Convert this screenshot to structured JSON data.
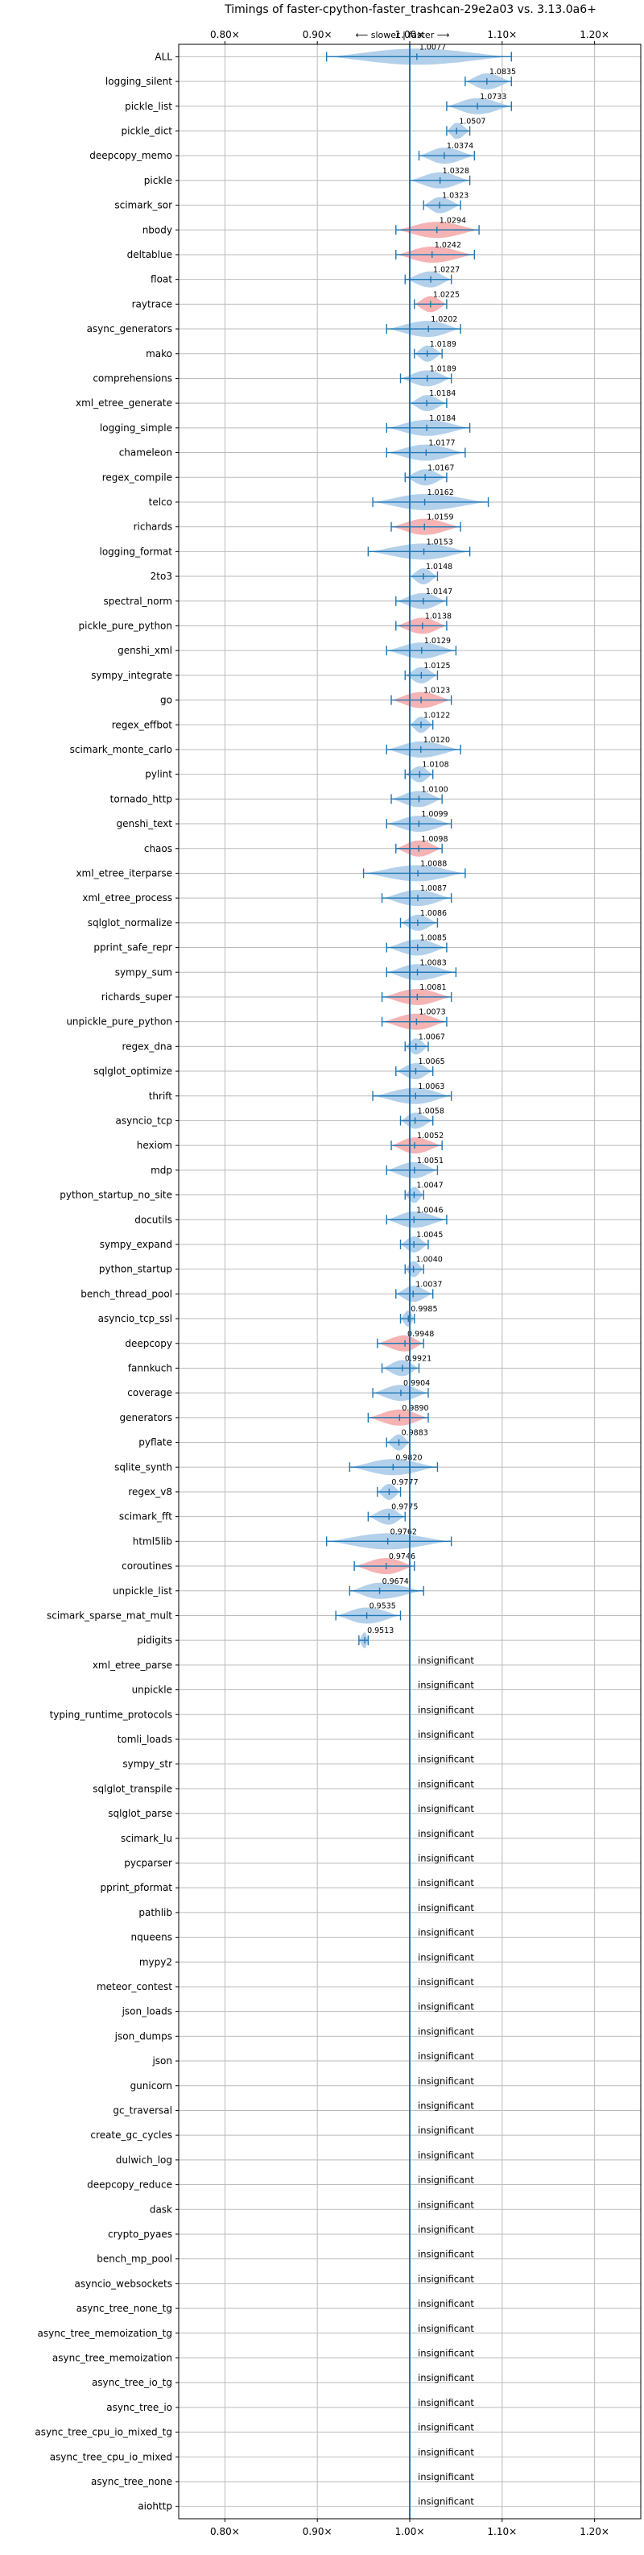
{
  "chart_data": {
    "type": "violin",
    "title": "Timings of faster-cpython-faster_trashcan-29e2a03 vs. 3.13.0a6+",
    "direction_label": "⟵ slower | faster ⟶",
    "xlim": [
      0.75,
      1.25
    ],
    "xticks": [
      0.8,
      0.9,
      1.0,
      1.1,
      1.2
    ],
    "xtick_labels": [
      "0.80×",
      "0.90×",
      "1.00×",
      "1.10×",
      "1.20×"
    ],
    "grid": true,
    "colors": {
      "faster": "#a6c8e8",
      "slower": "#f4a6a6",
      "errorbar": "#1f77b4",
      "reference_line": "#1f77b4",
      "grid": "#bbbbbb",
      "text": "#000000"
    },
    "insignificant_label": "insignificant",
    "benchmarks": [
      {
        "name": "ALL",
        "value": 1.0077,
        "label": "1.0077",
        "lo": 0.91,
        "hi": 1.11,
        "status": "faster"
      },
      {
        "name": "logging_silent",
        "value": 1.0835,
        "label": "1.0835",
        "lo": 1.06,
        "hi": 1.11,
        "status": "faster"
      },
      {
        "name": "pickle_list",
        "value": 1.0733,
        "label": "1.0733",
        "lo": 1.04,
        "hi": 1.11,
        "status": "faster"
      },
      {
        "name": "pickle_dict",
        "value": 1.0507,
        "label": "1.0507",
        "lo": 1.04,
        "hi": 1.065,
        "status": "faster"
      },
      {
        "name": "deepcopy_memo",
        "value": 1.0374,
        "label": "1.0374",
        "lo": 1.01,
        "hi": 1.07,
        "status": "faster"
      },
      {
        "name": "pickle",
        "value": 1.0328,
        "label": "1.0328",
        "lo": 1.0,
        "hi": 1.065,
        "status": "faster"
      },
      {
        "name": "scimark_sor",
        "value": 1.0323,
        "label": "1.0323",
        "lo": 1.015,
        "hi": 1.055,
        "status": "faster"
      },
      {
        "name": "nbody",
        "value": 1.0294,
        "label": "1.0294",
        "lo": 0.985,
        "hi": 1.075,
        "status": "slower"
      },
      {
        "name": "deltablue",
        "value": 1.0242,
        "label": "1.0242",
        "lo": 0.985,
        "hi": 1.07,
        "status": "slower"
      },
      {
        "name": "float",
        "value": 1.0227,
        "label": "1.0227",
        "lo": 0.995,
        "hi": 1.045,
        "status": "faster"
      },
      {
        "name": "raytrace",
        "value": 1.0225,
        "label": "1.0225",
        "lo": 1.005,
        "hi": 1.04,
        "status": "slower"
      },
      {
        "name": "async_generators",
        "value": 1.0202,
        "label": "1.0202",
        "lo": 0.975,
        "hi": 1.055,
        "status": "faster"
      },
      {
        "name": "mako",
        "value": 1.0189,
        "label": "1.0189",
        "lo": 1.005,
        "hi": 1.035,
        "status": "faster"
      },
      {
        "name": "comprehensions",
        "value": 1.0189,
        "label": "1.0189",
        "lo": 0.99,
        "hi": 1.045,
        "status": "faster"
      },
      {
        "name": "xml_etree_generate",
        "value": 1.0184,
        "label": "1.0184",
        "lo": 1.0,
        "hi": 1.04,
        "status": "faster"
      },
      {
        "name": "logging_simple",
        "value": 1.0184,
        "label": "1.0184",
        "lo": 0.975,
        "hi": 1.065,
        "status": "faster"
      },
      {
        "name": "chameleon",
        "value": 1.0177,
        "label": "1.0177",
        "lo": 0.975,
        "hi": 1.06,
        "status": "faster"
      },
      {
        "name": "regex_compile",
        "value": 1.0167,
        "label": "1.0167",
        "lo": 0.995,
        "hi": 1.04,
        "status": "faster"
      },
      {
        "name": "telco",
        "value": 1.0162,
        "label": "1.0162",
        "lo": 0.96,
        "hi": 1.085,
        "status": "faster"
      },
      {
        "name": "richards",
        "value": 1.0159,
        "label": "1.0159",
        "lo": 0.98,
        "hi": 1.055,
        "status": "slower"
      },
      {
        "name": "logging_format",
        "value": 1.0153,
        "label": "1.0153",
        "lo": 0.955,
        "hi": 1.065,
        "status": "faster"
      },
      {
        "name": "2to3",
        "value": 1.0148,
        "label": "1.0148",
        "lo": 1.0,
        "hi": 1.03,
        "status": "faster"
      },
      {
        "name": "spectral_norm",
        "value": 1.0147,
        "label": "1.0147",
        "lo": 0.985,
        "hi": 1.04,
        "status": "faster"
      },
      {
        "name": "pickle_pure_python",
        "value": 1.0138,
        "label": "1.0138",
        "lo": 0.985,
        "hi": 1.04,
        "status": "slower"
      },
      {
        "name": "genshi_xml",
        "value": 1.0129,
        "label": "1.0129",
        "lo": 0.975,
        "hi": 1.05,
        "status": "faster"
      },
      {
        "name": "sympy_integrate",
        "value": 1.0125,
        "label": "1.0125",
        "lo": 0.995,
        "hi": 1.03,
        "status": "faster"
      },
      {
        "name": "go",
        "value": 1.0123,
        "label": "1.0123",
        "lo": 0.98,
        "hi": 1.045,
        "status": "slower"
      },
      {
        "name": "regex_effbot",
        "value": 1.0122,
        "label": "1.0122",
        "lo": 1.0,
        "hi": 1.025,
        "status": "faster"
      },
      {
        "name": "scimark_monte_carlo",
        "value": 1.012,
        "label": "1.0120",
        "lo": 0.975,
        "hi": 1.055,
        "status": "faster"
      },
      {
        "name": "pylint",
        "value": 1.0108,
        "label": "1.0108",
        "lo": 0.995,
        "hi": 1.025,
        "status": "faster"
      },
      {
        "name": "tornado_http",
        "value": 1.01,
        "label": "1.0100",
        "lo": 0.98,
        "hi": 1.035,
        "status": "faster"
      },
      {
        "name": "genshi_text",
        "value": 1.0099,
        "label": "1.0099",
        "lo": 0.975,
        "hi": 1.045,
        "status": "faster"
      },
      {
        "name": "chaos",
        "value": 1.0098,
        "label": "1.0098",
        "lo": 0.985,
        "hi": 1.035,
        "status": "slower"
      },
      {
        "name": "xml_etree_iterparse",
        "value": 1.0088,
        "label": "1.0088",
        "lo": 0.95,
        "hi": 1.06,
        "status": "faster"
      },
      {
        "name": "xml_etree_process",
        "value": 1.0087,
        "label": "1.0087",
        "lo": 0.97,
        "hi": 1.045,
        "status": "faster"
      },
      {
        "name": "sqlglot_normalize",
        "value": 1.0086,
        "label": "1.0086",
        "lo": 0.99,
        "hi": 1.03,
        "status": "faster"
      },
      {
        "name": "pprint_safe_repr",
        "value": 1.0085,
        "label": "1.0085",
        "lo": 0.975,
        "hi": 1.04,
        "status": "faster"
      },
      {
        "name": "sympy_sum",
        "value": 1.0083,
        "label": "1.0083",
        "lo": 0.975,
        "hi": 1.05,
        "status": "faster"
      },
      {
        "name": "richards_super",
        "value": 1.0081,
        "label": "1.0081",
        "lo": 0.97,
        "hi": 1.045,
        "status": "slower"
      },
      {
        "name": "unpickle_pure_python",
        "value": 1.0073,
        "label": "1.0073",
        "lo": 0.97,
        "hi": 1.04,
        "status": "slower"
      },
      {
        "name": "regex_dna",
        "value": 1.0067,
        "label": "1.0067",
        "lo": 0.995,
        "hi": 1.02,
        "status": "faster"
      },
      {
        "name": "sqlglot_optimize",
        "value": 1.0065,
        "label": "1.0065",
        "lo": 0.985,
        "hi": 1.025,
        "status": "faster"
      },
      {
        "name": "thrift",
        "value": 1.0063,
        "label": "1.0063",
        "lo": 0.96,
        "hi": 1.045,
        "status": "faster"
      },
      {
        "name": "asyncio_tcp",
        "value": 1.0058,
        "label": "1.0058",
        "lo": 0.99,
        "hi": 1.025,
        "status": "faster"
      },
      {
        "name": "hexiom",
        "value": 1.0052,
        "label": "1.0052",
        "lo": 0.98,
        "hi": 1.035,
        "status": "slower"
      },
      {
        "name": "mdp",
        "value": 1.0051,
        "label": "1.0051",
        "lo": 0.975,
        "hi": 1.03,
        "status": "faster"
      },
      {
        "name": "python_startup_no_site",
        "value": 1.0047,
        "label": "1.0047",
        "lo": 0.995,
        "hi": 1.015,
        "status": "faster"
      },
      {
        "name": "docutils",
        "value": 1.0046,
        "label": "1.0046",
        "lo": 0.975,
        "hi": 1.04,
        "status": "faster"
      },
      {
        "name": "sympy_expand",
        "value": 1.0045,
        "label": "1.0045",
        "lo": 0.99,
        "hi": 1.02,
        "status": "faster"
      },
      {
        "name": "python_startup",
        "value": 1.004,
        "label": "1.0040",
        "lo": 0.995,
        "hi": 1.015,
        "status": "faster"
      },
      {
        "name": "bench_thread_pool",
        "value": 1.0037,
        "label": "1.0037",
        "lo": 0.985,
        "hi": 1.025,
        "status": "faster"
      },
      {
        "name": "asyncio_tcp_ssl",
        "value": 0.9985,
        "label": "0.9985",
        "lo": 0.99,
        "hi": 1.005,
        "status": "faster"
      },
      {
        "name": "deepcopy",
        "value": 0.9948,
        "label": "0.9948",
        "lo": 0.965,
        "hi": 1.015,
        "status": "slower"
      },
      {
        "name": "fannkuch",
        "value": 0.9921,
        "label": "0.9921",
        "lo": 0.97,
        "hi": 1.01,
        "status": "faster"
      },
      {
        "name": "coverage",
        "value": 0.9904,
        "label": "0.9904",
        "lo": 0.96,
        "hi": 1.02,
        "status": "faster"
      },
      {
        "name": "generators",
        "value": 0.989,
        "label": "0.9890",
        "lo": 0.955,
        "hi": 1.02,
        "status": "slower"
      },
      {
        "name": "pyflate",
        "value": 0.9883,
        "label": "0.9883",
        "lo": 0.975,
        "hi": 1.0,
        "status": "faster"
      },
      {
        "name": "sqlite_synth",
        "value": 0.982,
        "label": "0.9820",
        "lo": 0.935,
        "hi": 1.03,
        "status": "faster"
      },
      {
        "name": "regex_v8",
        "value": 0.9777,
        "label": "0.9777",
        "lo": 0.965,
        "hi": 0.99,
        "status": "faster"
      },
      {
        "name": "scimark_fft",
        "value": 0.9775,
        "label": "0.9775",
        "lo": 0.955,
        "hi": 0.995,
        "status": "faster"
      },
      {
        "name": "html5lib",
        "value": 0.9762,
        "label": "0.9762",
        "lo": 0.91,
        "hi": 1.045,
        "status": "faster"
      },
      {
        "name": "coroutines",
        "value": 0.9746,
        "label": "0.9746",
        "lo": 0.94,
        "hi": 1.005,
        "status": "slower"
      },
      {
        "name": "unpickle_list",
        "value": 0.9674,
        "label": "0.9674",
        "lo": 0.935,
        "hi": 1.015,
        "status": "faster"
      },
      {
        "name": "scimark_sparse_mat_mult",
        "value": 0.9535,
        "label": "0.9535",
        "lo": 0.92,
        "hi": 0.99,
        "status": "faster"
      },
      {
        "name": "pidigits",
        "value": 0.9513,
        "label": "0.9513",
        "lo": 0.945,
        "hi": 0.955,
        "status": "faster"
      },
      {
        "name": "xml_etree_parse",
        "value": null,
        "status": "insignificant"
      },
      {
        "name": "unpickle",
        "value": null,
        "status": "insignificant"
      },
      {
        "name": "typing_runtime_protocols",
        "value": null,
        "status": "insignificant"
      },
      {
        "name": "tomli_loads",
        "value": null,
        "status": "insignificant"
      },
      {
        "name": "sympy_str",
        "value": null,
        "status": "insignificant"
      },
      {
        "name": "sqlglot_transpile",
        "value": null,
        "status": "insignificant"
      },
      {
        "name": "sqlglot_parse",
        "value": null,
        "status": "insignificant"
      },
      {
        "name": "scimark_lu",
        "value": null,
        "status": "insignificant"
      },
      {
        "name": "pycparser",
        "value": null,
        "status": "insignificant"
      },
      {
        "name": "pprint_pformat",
        "value": null,
        "status": "insignificant"
      },
      {
        "name": "pathlib",
        "value": null,
        "status": "insignificant"
      },
      {
        "name": "nqueens",
        "value": null,
        "status": "insignificant"
      },
      {
        "name": "mypy2",
        "value": null,
        "status": "insignificant"
      },
      {
        "name": "meteor_contest",
        "value": null,
        "status": "insignificant"
      },
      {
        "name": "json_loads",
        "value": null,
        "status": "insignificant"
      },
      {
        "name": "json_dumps",
        "value": null,
        "status": "insignificant"
      },
      {
        "name": "json",
        "value": null,
        "status": "insignificant"
      },
      {
        "name": "gunicorn",
        "value": null,
        "status": "insignificant"
      },
      {
        "name": "gc_traversal",
        "value": null,
        "status": "insignificant"
      },
      {
        "name": "create_gc_cycles",
        "value": null,
        "status": "insignificant"
      },
      {
        "name": "dulwich_log",
        "value": null,
        "status": "insignificant"
      },
      {
        "name": "deepcopy_reduce",
        "value": null,
        "status": "insignificant"
      },
      {
        "name": "dask",
        "value": null,
        "status": "insignificant"
      },
      {
        "name": "crypto_pyaes",
        "value": null,
        "status": "insignificant"
      },
      {
        "name": "bench_mp_pool",
        "value": null,
        "status": "insignificant"
      },
      {
        "name": "asyncio_websockets",
        "value": null,
        "status": "insignificant"
      },
      {
        "name": "async_tree_none_tg",
        "value": null,
        "status": "insignificant"
      },
      {
        "name": "async_tree_memoization_tg",
        "value": null,
        "status": "insignificant"
      },
      {
        "name": "async_tree_memoization",
        "value": null,
        "status": "insignificant"
      },
      {
        "name": "async_tree_io_tg",
        "value": null,
        "status": "insignificant"
      },
      {
        "name": "async_tree_io",
        "value": null,
        "status": "insignificant"
      },
      {
        "name": "async_tree_cpu_io_mixed_tg",
        "value": null,
        "status": "insignificant"
      },
      {
        "name": "async_tree_cpu_io_mixed",
        "value": null,
        "status": "insignificant"
      },
      {
        "name": "async_tree_none",
        "value": null,
        "status": "insignificant"
      },
      {
        "name": "aiohttp",
        "value": null,
        "status": "insignificant"
      }
    ]
  }
}
